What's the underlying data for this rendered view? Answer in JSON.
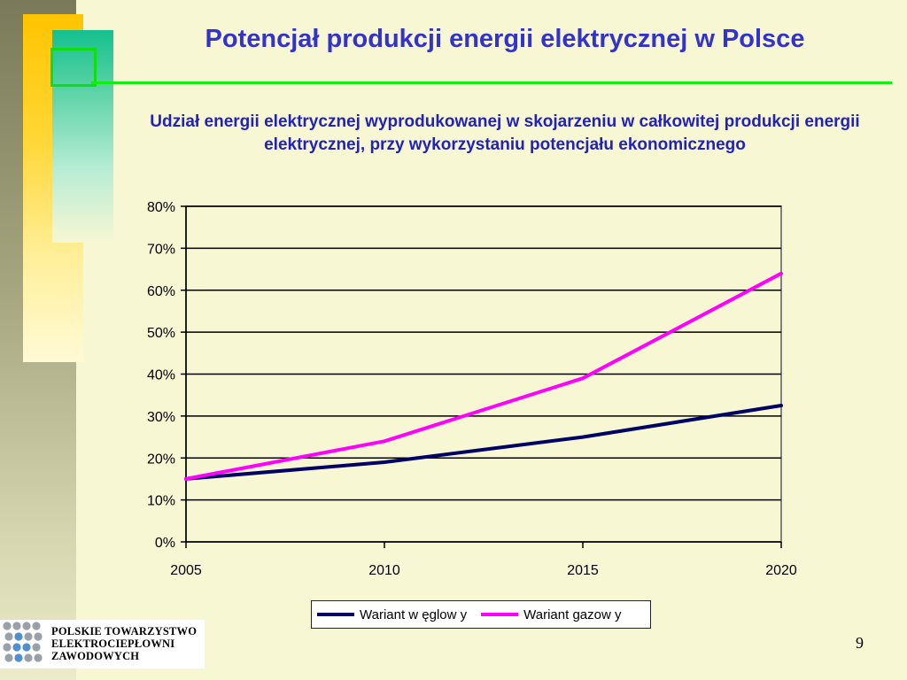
{
  "slide": {
    "title": "Potencjał produkcji energii elektrycznej w Polsce",
    "page_number": "9"
  },
  "logo": {
    "lines": [
      "POLSKIE TOWARZYSTWO",
      "ELEKTROCIEPŁOWNI",
      "ZAWODOWYCH"
    ]
  },
  "colors": {
    "background": "#f7f7d3",
    "title": "#3333cc",
    "accent_green": "#11ee11",
    "series_coal": "#000066",
    "series_gas": "#ff00ff"
  },
  "chart_data": {
    "type": "line",
    "title": "Udział energii elektrycznej wyprodukowanej w skojarzeniu w całkowitej produkcji energii elektrycznej, przy wykorzystaniu potencjału ekonomicznego",
    "x": [
      2005,
      2010,
      2015,
      2020
    ],
    "x_tick_labels": [
      "2005",
      "2010",
      "2015",
      "2020"
    ],
    "y_tick_labels": [
      "0%",
      "10%",
      "20%",
      "30%",
      "40%",
      "50%",
      "60%",
      "70%",
      "80%"
    ],
    "ylim": [
      0,
      80
    ],
    "y_unit": "%",
    "grid": true,
    "legend_position": "bottom",
    "series": [
      {
        "name": "Wariant w ęglow y",
        "values": [
          15,
          19,
          25,
          32.5
        ],
        "color": "#000066"
      },
      {
        "name": "Wariant gazow y",
        "values": [
          15,
          24,
          39,
          64
        ],
        "color": "#ff00ff"
      }
    ]
  }
}
